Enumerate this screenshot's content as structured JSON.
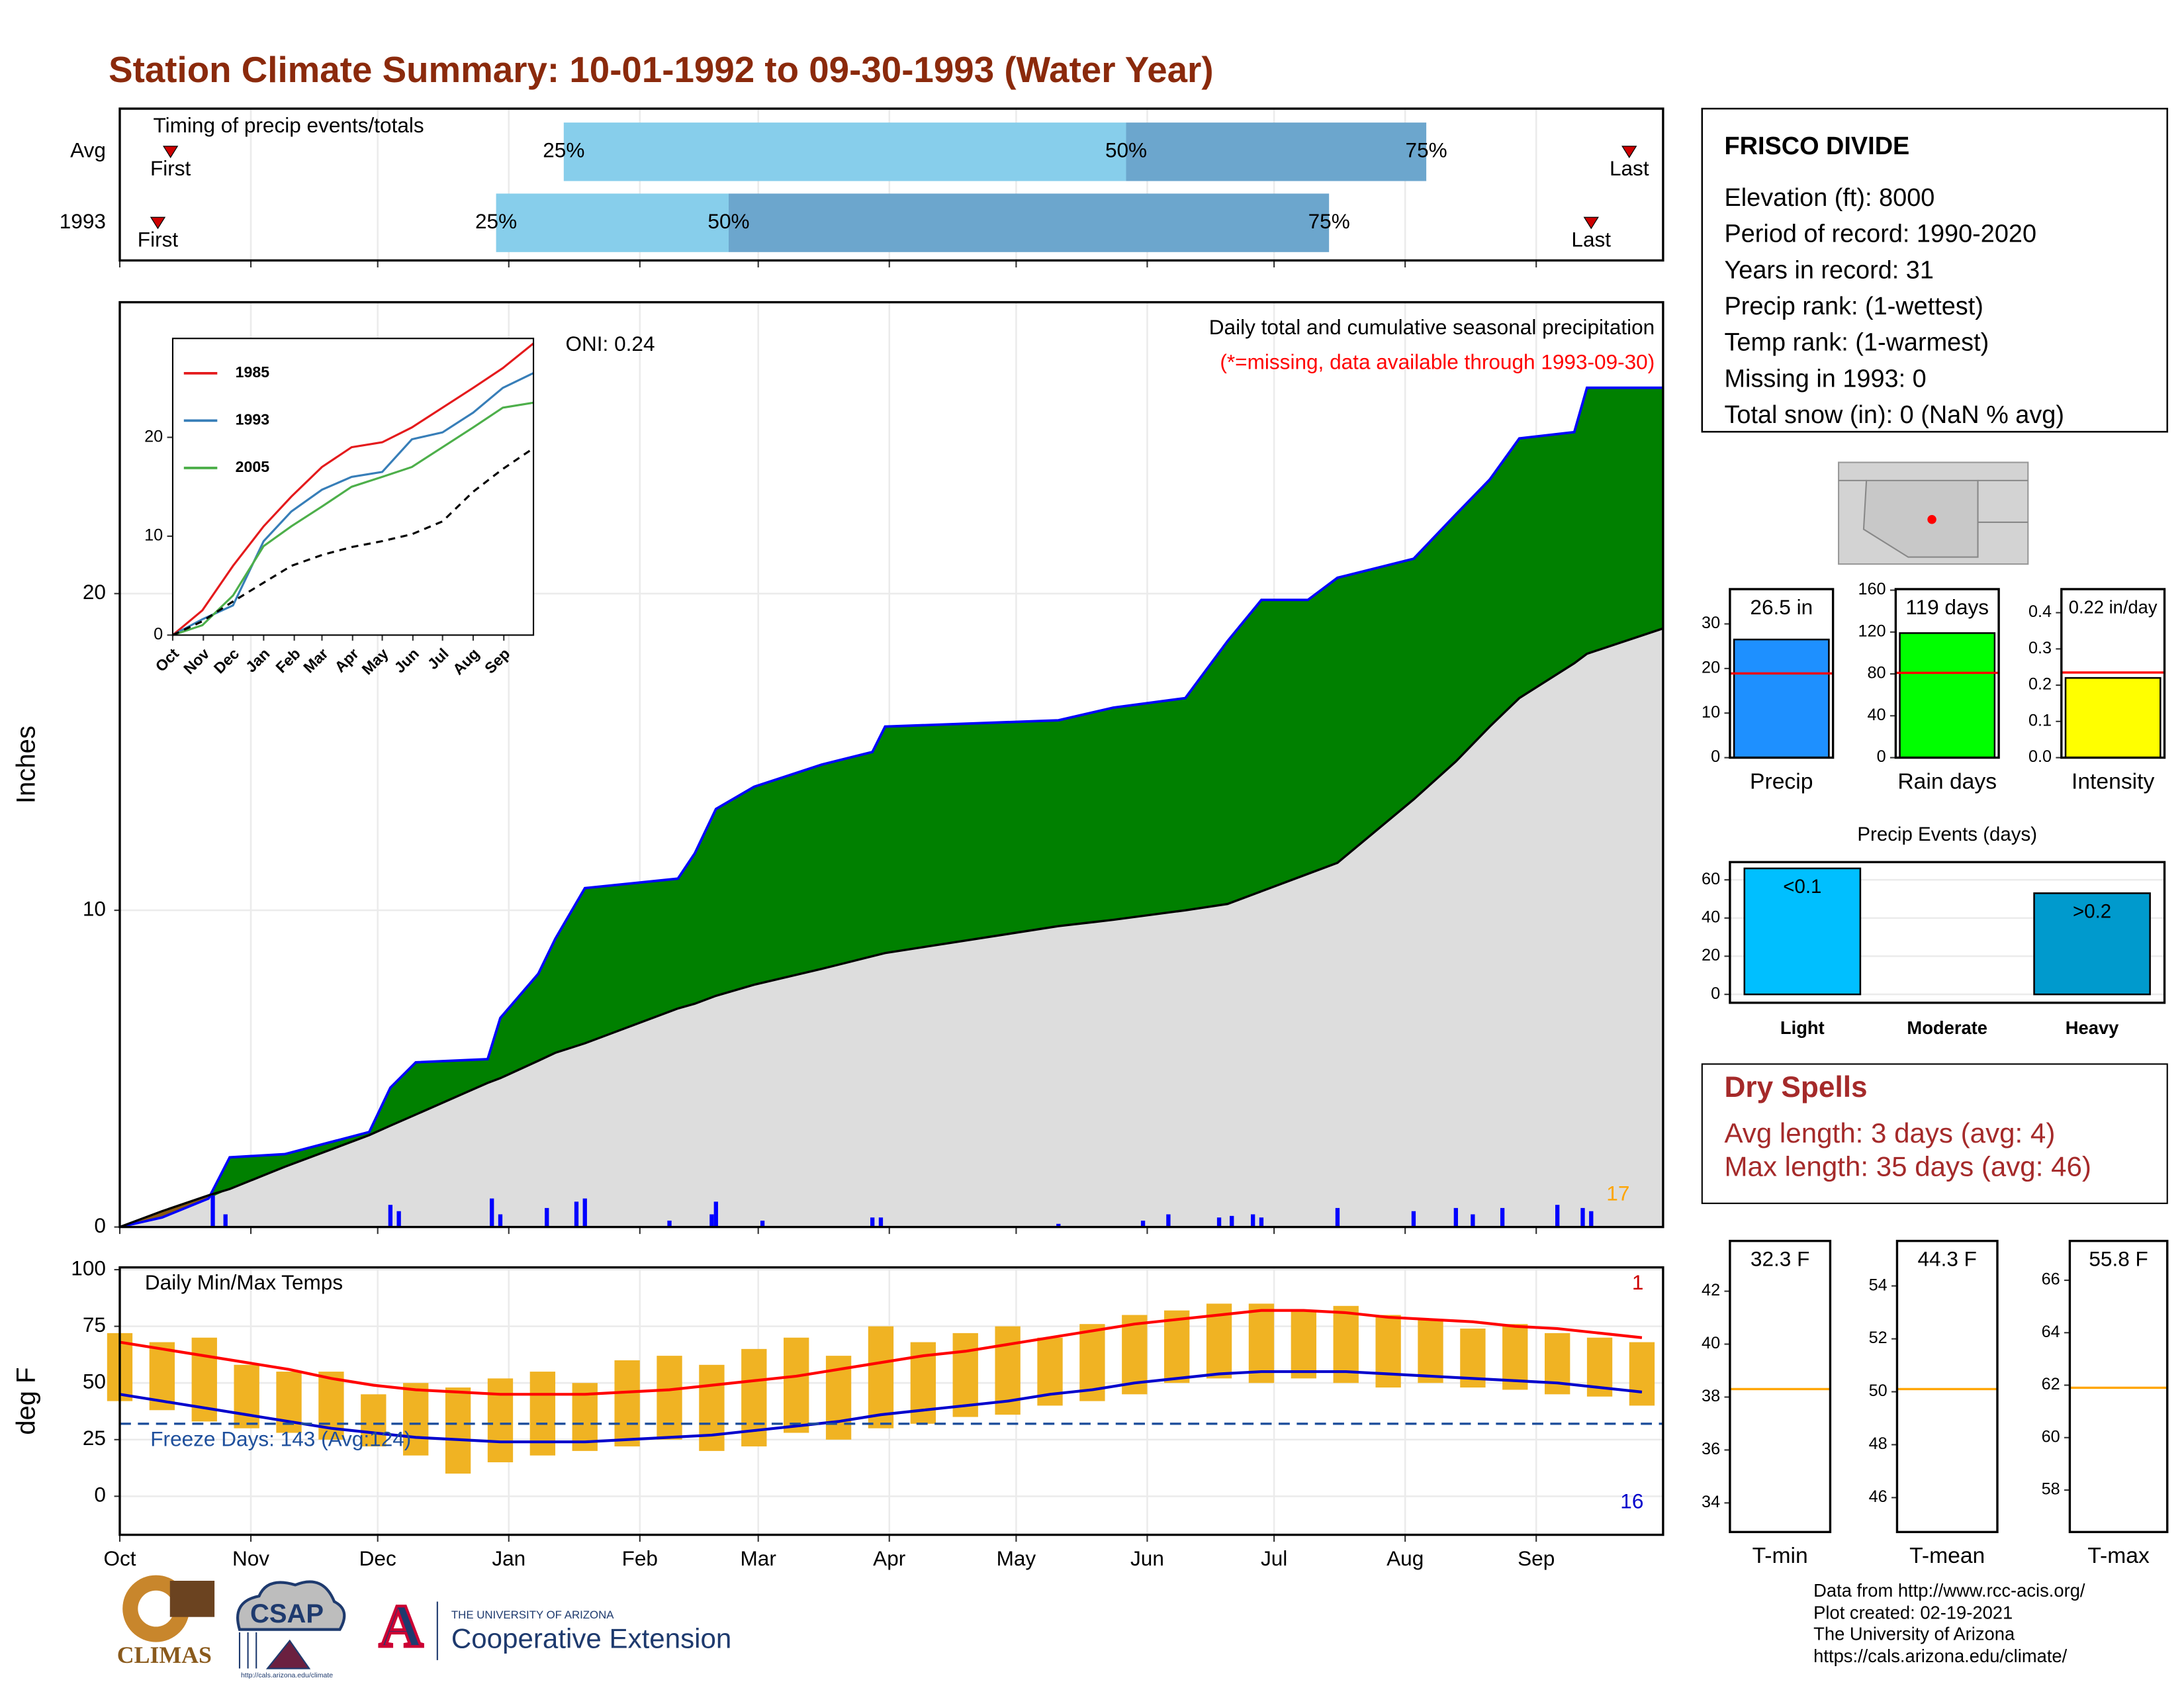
{
  "title": "Station Climate Summary: 10-01-1992 to 09-30-1993 (Water Year)",
  "chart_data": [
    {
      "type": "timing",
      "title": "Timing of precip events/totals",
      "xlim": [
        0,
        365
      ],
      "categories": [
        "Avg",
        "1993"
      ],
      "labels": [
        "First",
        "25%",
        "50%",
        "75%",
        "Last"
      ],
      "colors": [
        "#87CEEB",
        "#6CA6CD"
      ],
      "marker_color": "#CC0000",
      "series": [
        {
          "name": "Avg",
          "values": [
            12,
            105,
            238,
            309,
            357
          ]
        },
        {
          "name": "1993",
          "values": [
            9,
            89,
            144,
            286,
            348
          ]
        }
      ],
      "month_grid": true
    },
    {
      "type": "cumulative",
      "title": "Daily total and cumulative seasonal precipitation",
      "subtitle": "(*=missing, data available through 1993-09-30)",
      "annotation": "ONI: 0.24",
      "count": 17,
      "ylabel": "Inches",
      "xlim": [
        0,
        365
      ],
      "ylim": [
        0,
        29.2
      ],
      "yticks": [
        0,
        10,
        20
      ],
      "grid": true,
      "month_grid": true,
      "x": [
        0,
        10,
        21,
        26,
        39,
        59,
        64,
        70,
        87,
        90,
        99,
        103,
        110,
        132,
        136,
        141,
        150,
        166,
        178,
        181,
        222,
        235,
        252,
        262,
        270,
        281,
        288,
        306,
        316,
        324,
        331,
        344,
        347,
        365
      ],
      "series": [
        {
          "color": "#008000",
          "line_color": "#0000FF",
          "values": [
            0,
            0.3,
            0.9,
            2.2,
            2.3,
            3.0,
            4.4,
            5.2,
            5.3,
            6.6,
            8.0,
            9.1,
            10.7,
            11.0,
            11.8,
            13.2,
            13.9,
            14.6,
            15.0,
            15.8,
            16.0,
            16.4,
            16.7,
            18.5,
            19.8,
            19.8,
            20.5,
            21.1,
            22.5,
            23.6,
            24.9,
            25.1,
            26.5,
            26.5
          ]
        },
        {
          "color": "#DDDDDD",
          "line_color": "#000000",
          "values": [
            0,
            0.5,
            1.0,
            1.2,
            1.9,
            2.9,
            3.2,
            3.55,
            4.55,
            4.7,
            5.25,
            5.5,
            5.8,
            6.9,
            7.05,
            7.3,
            7.65,
            8.15,
            8.55,
            8.65,
            9.5,
            9.7,
            10.0,
            10.2,
            10.6,
            11.15,
            11.5,
            13.5,
            14.7,
            15.8,
            16.7,
            17.8,
            18.1,
            18.9
          ]
        }
      ],
      "deficit_color": "#8B5A13",
      "daily": {
        "color": "#0000FF",
        "x": [
          22,
          25,
          64,
          66,
          88,
          90,
          101,
          108,
          110,
          130,
          140,
          141,
          152,
          178,
          180,
          222,
          242,
          248,
          260,
          263,
          268,
          270,
          288,
          306,
          316,
          320,
          327,
          340,
          346,
          348
        ],
        "values": [
          1.0,
          0.4,
          0.7,
          0.5,
          0.9,
          0.4,
          0.6,
          0.8,
          0.9,
          0.2,
          0.4,
          0.8,
          0.2,
          0.3,
          0.3,
          0.1,
          0.2,
          0.4,
          0.3,
          0.35,
          0.4,
          0.3,
          0.6,
          0.5,
          0.6,
          0.4,
          0.6,
          0.7,
          0.6,
          0.5
        ]
      }
    },
    {
      "type": "line",
      "xlim": [
        0,
        365
      ],
      "ylim": [
        0,
        30
      ],
      "yticks": [
        0,
        10,
        20
      ],
      "x": [
        0,
        30,
        61,
        92,
        120,
        151,
        181,
        212,
        242,
        273,
        304,
        334,
        365
      ],
      "xticks": [
        {
          "value": 0,
          "label": "Oct"
        },
        {
          "value": 31,
          "label": "Nov"
        },
        {
          "value": 61,
          "label": "Dec"
        },
        {
          "value": 92,
          "label": "Jan"
        },
        {
          "value": 123,
          "label": "Feb"
        },
        {
          "value": 151,
          "label": "Mar"
        },
        {
          "value": 182,
          "label": "Apr"
        },
        {
          "value": 212,
          "label": "May"
        },
        {
          "value": 243,
          "label": "Jun"
        },
        {
          "value": 273,
          "label": "Jul"
        },
        {
          "value": 304,
          "label": "Aug"
        },
        {
          "value": 335,
          "label": "Sep"
        }
      ],
      "series": [
        {
          "name": "1985",
          "color": "#E41A1C",
          "values": [
            0,
            2.5,
            7,
            11,
            14,
            17,
            19,
            19.5,
            21,
            23,
            25,
            27,
            29.5
          ]
        },
        {
          "name": "1993",
          "color": "#377EB8",
          "values": [
            0,
            1.6,
            3,
            9.5,
            12.5,
            14.7,
            16,
            16.5,
            19.8,
            20.5,
            22.5,
            25,
            26.5
          ]
        },
        {
          "name": "2005",
          "color": "#4DAF4A",
          "values": [
            0,
            1,
            4,
            9,
            11,
            13,
            15,
            16,
            17,
            19,
            21,
            23,
            23.5
          ]
        },
        {
          "color": "#000000",
          "dash": true,
          "values": [
            0,
            1.4,
            3.4,
            5.3,
            7,
            8.1,
            8.9,
            9.5,
            10.2,
            11.5,
            14.5,
            16.8,
            18.9
          ]
        }
      ]
    },
    {
      "type": "temperature",
      "title": "Daily Min/Max Temps",
      "ylabel": "deg F",
      "annotation": "Freeze Days: 143 (Avg:124)",
      "max_count": 1,
      "min_count": 16,
      "freeze_line": 32,
      "xlim": [
        0,
        365
      ],
      "ylim": [
        -17,
        101
      ],
      "yticks": [
        0,
        25,
        50,
        75,
        100
      ],
      "grid": true,
      "month_grid": true,
      "xticks": [
        {
          "value": 0,
          "label": "Oct"
        },
        {
          "value": 31,
          "label": "Nov"
        },
        {
          "value": 61,
          "label": "Dec"
        },
        {
          "value": 92,
          "label": "Jan"
        },
        {
          "value": 123,
          "label": "Feb"
        },
        {
          "value": 151,
          "label": "Mar"
        },
        {
          "value": 182,
          "label": "Apr"
        },
        {
          "value": 212,
          "label": "May"
        },
        {
          "value": 243,
          "label": "Jun"
        },
        {
          "value": 273,
          "label": "Jul"
        },
        {
          "value": 304,
          "label": "Aug"
        },
        {
          "value": 335,
          "label": "Sep"
        }
      ],
      "x": [
        0,
        10,
        20,
        30,
        40,
        50,
        60,
        70,
        80,
        90,
        100,
        110,
        120,
        130,
        140,
        150,
        160,
        170,
        180,
        190,
        200,
        210,
        220,
        230,
        240,
        250,
        260,
        270,
        280,
        290,
        300,
        310,
        320,
        330,
        340,
        350,
        360
      ],
      "range": {
        "color": "#F0B323",
        "low": [
          42,
          38,
          33,
          30,
          28,
          25,
          22,
          18,
          10,
          15,
          18,
          20,
          22,
          25,
          20,
          22,
          28,
          25,
          30,
          32,
          35,
          36,
          40,
          42,
          45,
          50,
          52,
          50,
          52,
          50,
          48,
          50,
          48,
          47,
          45,
          44,
          40
        ],
        "high": [
          72,
          68,
          70,
          58,
          55,
          55,
          45,
          50,
          48,
          52,
          55,
          50,
          60,
          62,
          58,
          65,
          70,
          62,
          75,
          68,
          72,
          75,
          70,
          76,
          80,
          82,
          85,
          85,
          82,
          84,
          80,
          78,
          74,
          76,
          72,
          70,
          68
        ]
      },
      "series": [
        {
          "color": "#FF0000",
          "values": [
            68,
            65,
            62,
            59,
            56,
            52,
            49,
            47,
            46,
            45,
            45,
            45,
            46,
            47,
            49,
            51,
            53,
            56,
            59,
            62,
            64,
            67,
            70,
            73,
            76,
            78,
            80,
            82,
            82,
            81,
            79,
            78,
            77,
            75,
            74,
            72,
            70
          ]
        },
        {
          "color": "#0000CC",
          "values": [
            45,
            42,
            39,
            36,
            33,
            30,
            28,
            26,
            25,
            24,
            24,
            24,
            25,
            26,
            27,
            29,
            31,
            33,
            36,
            38,
            40,
            42,
            45,
            47,
            50,
            52,
            54,
            55,
            55,
            55,
            54,
            53,
            52,
            51,
            50,
            48,
            46
          ]
        }
      ]
    },
    {
      "type": "bar",
      "categories": [
        "Precip"
      ],
      "values": [
        26.5
      ],
      "value_labels": [
        "26.5 in"
      ],
      "color": "#1E90FF",
      "avg": 18.9,
      "avg_color": "#FF0000",
      "ylim": [
        0,
        37.8
      ],
      "yticks": [
        0,
        10,
        20,
        30
      ]
    },
    {
      "type": "bar",
      "categories": [
        "Rain days"
      ],
      "values": [
        119
      ],
      "value_labels": [
        "119 days"
      ],
      "color": "#00FF00",
      "avg": 81,
      "avg_color": "#FF0000",
      "ylim": [
        0,
        161
      ],
      "yticks": [
        0,
        40,
        80,
        120,
        160
      ]
    },
    {
      "type": "bar",
      "categories": [
        "Intensity"
      ],
      "values": [
        0.22
      ],
      "value_labels": [
        "0.22 in/day"
      ],
      "color": "#FFFF00",
      "avg": 0.235,
      "avg_color": "#FF0000",
      "ylim": [
        0,
        0.465
      ],
      "yticks": [
        {
          "value": 0,
          "label": "0.0"
        },
        0.1,
        0.2,
        0.3,
        0.4
      ]
    },
    {
      "type": "bar",
      "title": "Precip Events (days)",
      "categories": [
        "Light",
        "Moderate",
        "Heavy"
      ],
      "values": [
        66,
        0,
        53
      ],
      "bin_labels": [
        "<0.1",
        null,
        ">0.2"
      ],
      "colors": [
        "#00BFFF",
        "#1E90FF",
        "#009ACD"
      ],
      "ylim": [
        -4.4,
        69.3
      ],
      "yticks": [
        0,
        20,
        40,
        60
      ],
      "grid": true
    },
    {
      "type": "bar",
      "categories": [
        "T-min"
      ],
      "values": [
        32.3
      ],
      "value_labels": [
        "32.3 F"
      ],
      "color": "#FFFFFF",
      "avg": 38.3,
      "avg_color": "#FFA500",
      "ylim": [
        32.9,
        43.9
      ],
      "yticks": [
        34,
        36,
        38,
        40,
        42
      ]
    },
    {
      "type": "bar",
      "categories": [
        "T-mean"
      ],
      "values": [
        44.3
      ],
      "value_labels": [
        "44.3 F"
      ],
      "color": "#FFFFFF",
      "avg": 50.1,
      "avg_color": "#FFA500",
      "ylim": [
        44.7,
        55.7
      ],
      "yticks": [
        46,
        48,
        50,
        52,
        54
      ]
    },
    {
      "type": "bar",
      "categories": [
        "T-max"
      ],
      "values": [
        55.8
      ],
      "value_labels": [
        "55.8 F"
      ],
      "color": "#FFFFFF",
      "avg": 61.9,
      "avg_color": "#FFA500",
      "ylim": [
        56.4,
        67.5
      ],
      "yticks": [
        58,
        60,
        62,
        64,
        66
      ]
    }
  ],
  "station_box": {
    "name": "FRISCO DIVIDE",
    "lines": [
      "Elevation (ft): 8000",
      "Period of record: 1990-2020",
      "Years in record: 31",
      "Precip rank:  (1-wettest)",
      "Temp rank:  (1-warmest)",
      "Missing in 1993: 0",
      "Total snow (in): 0 (NaN % avg)"
    ]
  },
  "dry_spells": {
    "title": "Dry Spells",
    "lines": [
      "Avg length: 3 days (avg: 4)",
      "Max length: 35 days (avg: 46)"
    ]
  },
  "footer": {
    "logos": [
      "CLIMAS",
      "CSAP",
      "http://cals.arizona.edu/climate",
      "A",
      "THE UNIVERSITY OF ARIZONA",
      "Cooperative Extension"
    ],
    "credits": [
      "Data from http://www.rcc-acis.org/",
      "Plot created: 02-19-2021",
      "The University of Arizona",
      "https://cals.arizona.edu/climate/"
    ]
  }
}
